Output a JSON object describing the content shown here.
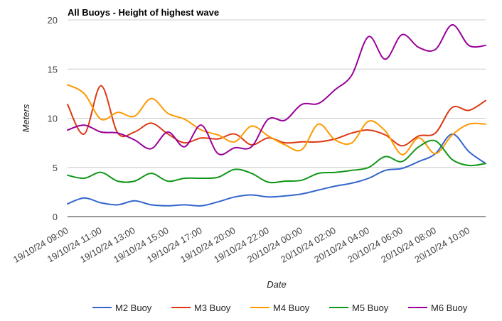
{
  "chart_data": {
    "type": "line",
    "title": "All Buoys - Height of highest wave",
    "xlabel": "Date",
    "ylabel": "Meters",
    "ylim": [
      0,
      20
    ],
    "yticks": [
      0,
      5,
      10,
      15,
      20
    ],
    "xlim": [
      0,
      25
    ],
    "grid": true,
    "legend_position": "bottom",
    "x_ticks": [
      {
        "x": 0,
        "label": "19/10/24 09:00"
      },
      {
        "x": 2,
        "label": "19/10/24 11:00"
      },
      {
        "x": 4,
        "label": "19/10/24 13:00"
      },
      {
        "x": 6,
        "label": "19/10/24 15:00"
      },
      {
        "x": 8,
        "label": "19/10/24 17:00"
      },
      {
        "x": 10,
        "label": "19/10/24 20:00"
      },
      {
        "x": 12,
        "label": "19/10/24 22:00"
      },
      {
        "x": 14,
        "label": "20/10/24 00:00"
      },
      {
        "x": 16,
        "label": "20/10/24 02:00"
      },
      {
        "x": 18,
        "label": "20/10/24 04:00"
      },
      {
        "x": 20,
        "label": "20/10/24 06:00"
      },
      {
        "x": 22,
        "label": "20/10/24 08:00"
      },
      {
        "x": 24,
        "label": "20/10/24 10:00"
      }
    ],
    "x": [
      0,
      1,
      2,
      3,
      4,
      5,
      6,
      7,
      8,
      9,
      10,
      11,
      12,
      13,
      14,
      15,
      16,
      17,
      18,
      19,
      20,
      21,
      22,
      23,
      24,
      25
    ],
    "series": [
      {
        "name": "M2 Buoy",
        "color": "#3366cc",
        "values": [
          1.3,
          1.9,
          1.4,
          1.2,
          1.6,
          1.2,
          1.1,
          1.2,
          1.1,
          1.5,
          2.0,
          2.2,
          2.0,
          2.1,
          2.3,
          2.7,
          3.1,
          3.4,
          3.9,
          4.7,
          4.9,
          5.6,
          6.4,
          8.4,
          6.6,
          5.4
        ]
      },
      {
        "name": "M3 Buoy",
        "color": "#dc3912",
        "values": [
          11.4,
          8.4,
          13.3,
          8.5,
          8.6,
          9.5,
          8.4,
          7.5,
          8.0,
          7.9,
          8.4,
          7.3,
          8.0,
          7.5,
          7.6,
          7.6,
          7.9,
          8.5,
          8.8,
          8.3,
          7.2,
          8.2,
          8.5,
          11.1,
          10.8,
          11.8
        ]
      },
      {
        "name": "M4 Buoy",
        "color": "#ff9900",
        "values": [
          13.4,
          12.5,
          9.9,
          10.6,
          10.2,
          12.0,
          10.5,
          9.9,
          8.8,
          8.3,
          7.6,
          9.2,
          8.2,
          7.3,
          6.8,
          9.4,
          7.8,
          7.5,
          9.7,
          8.7,
          6.3,
          8.0,
          6.4,
          8.3,
          9.4,
          9.4
        ]
      },
      {
        "name": "M5 Buoy",
        "color": "#109618",
        "values": [
          4.2,
          3.9,
          4.5,
          3.6,
          3.6,
          4.4,
          3.6,
          3.9,
          3.9,
          4.0,
          4.8,
          4.4,
          3.5,
          3.6,
          3.7,
          4.4,
          4.5,
          4.7,
          5.0,
          6.1,
          5.6,
          7.1,
          7.7,
          5.8,
          5.2,
          5.4
        ]
      },
      {
        "name": "M6 Buoy",
        "color": "#990099",
        "values": [
          8.8,
          9.3,
          8.6,
          8.5,
          7.8,
          6.9,
          8.6,
          7.1,
          9.3,
          6.4,
          7.0,
          7.1,
          9.9,
          9.8,
          11.4,
          11.5,
          12.9,
          14.4,
          18.3,
          16.0,
          18.5,
          17.2,
          17.0,
          19.5,
          17.4,
          17.4
        ]
      }
    ]
  }
}
